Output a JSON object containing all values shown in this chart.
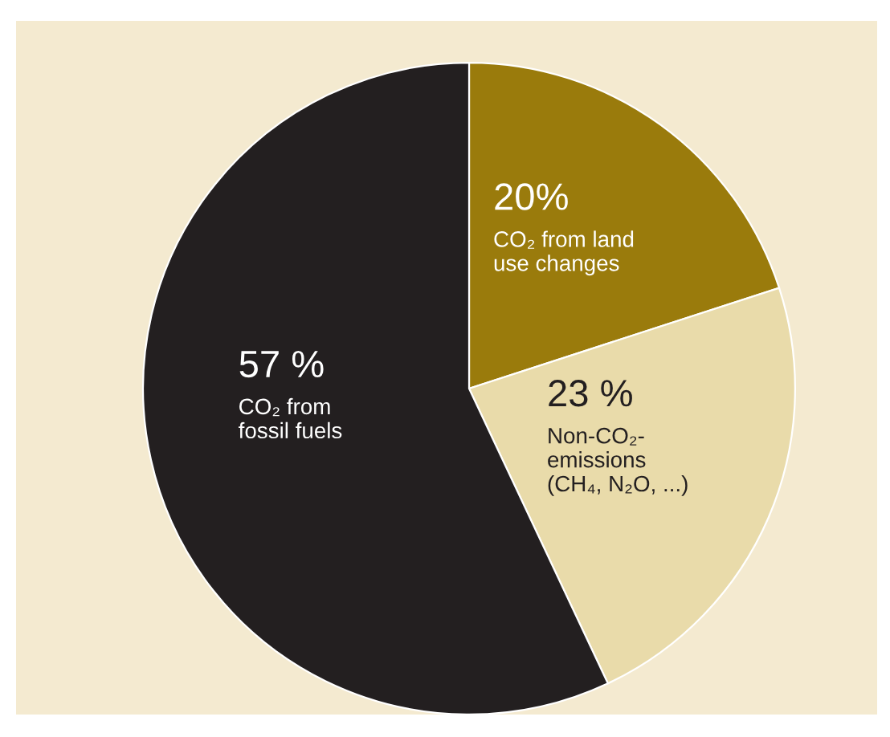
{
  "chart_data": {
    "type": "pie",
    "categories": [
      "CO₂ from land\nuse changes",
      "Non-CO₂-\nemissions\n(CH₄, N₂O, ...)",
      "CO₂ from\nfossil fuels"
    ],
    "values": [
      20,
      23,
      57
    ],
    "colors": [
      "#9a7b0c",
      "#e9dbaa",
      "#231f20"
    ],
    "value_labels": [
      "20%",
      "23 %",
      "57 %"
    ]
  }
}
